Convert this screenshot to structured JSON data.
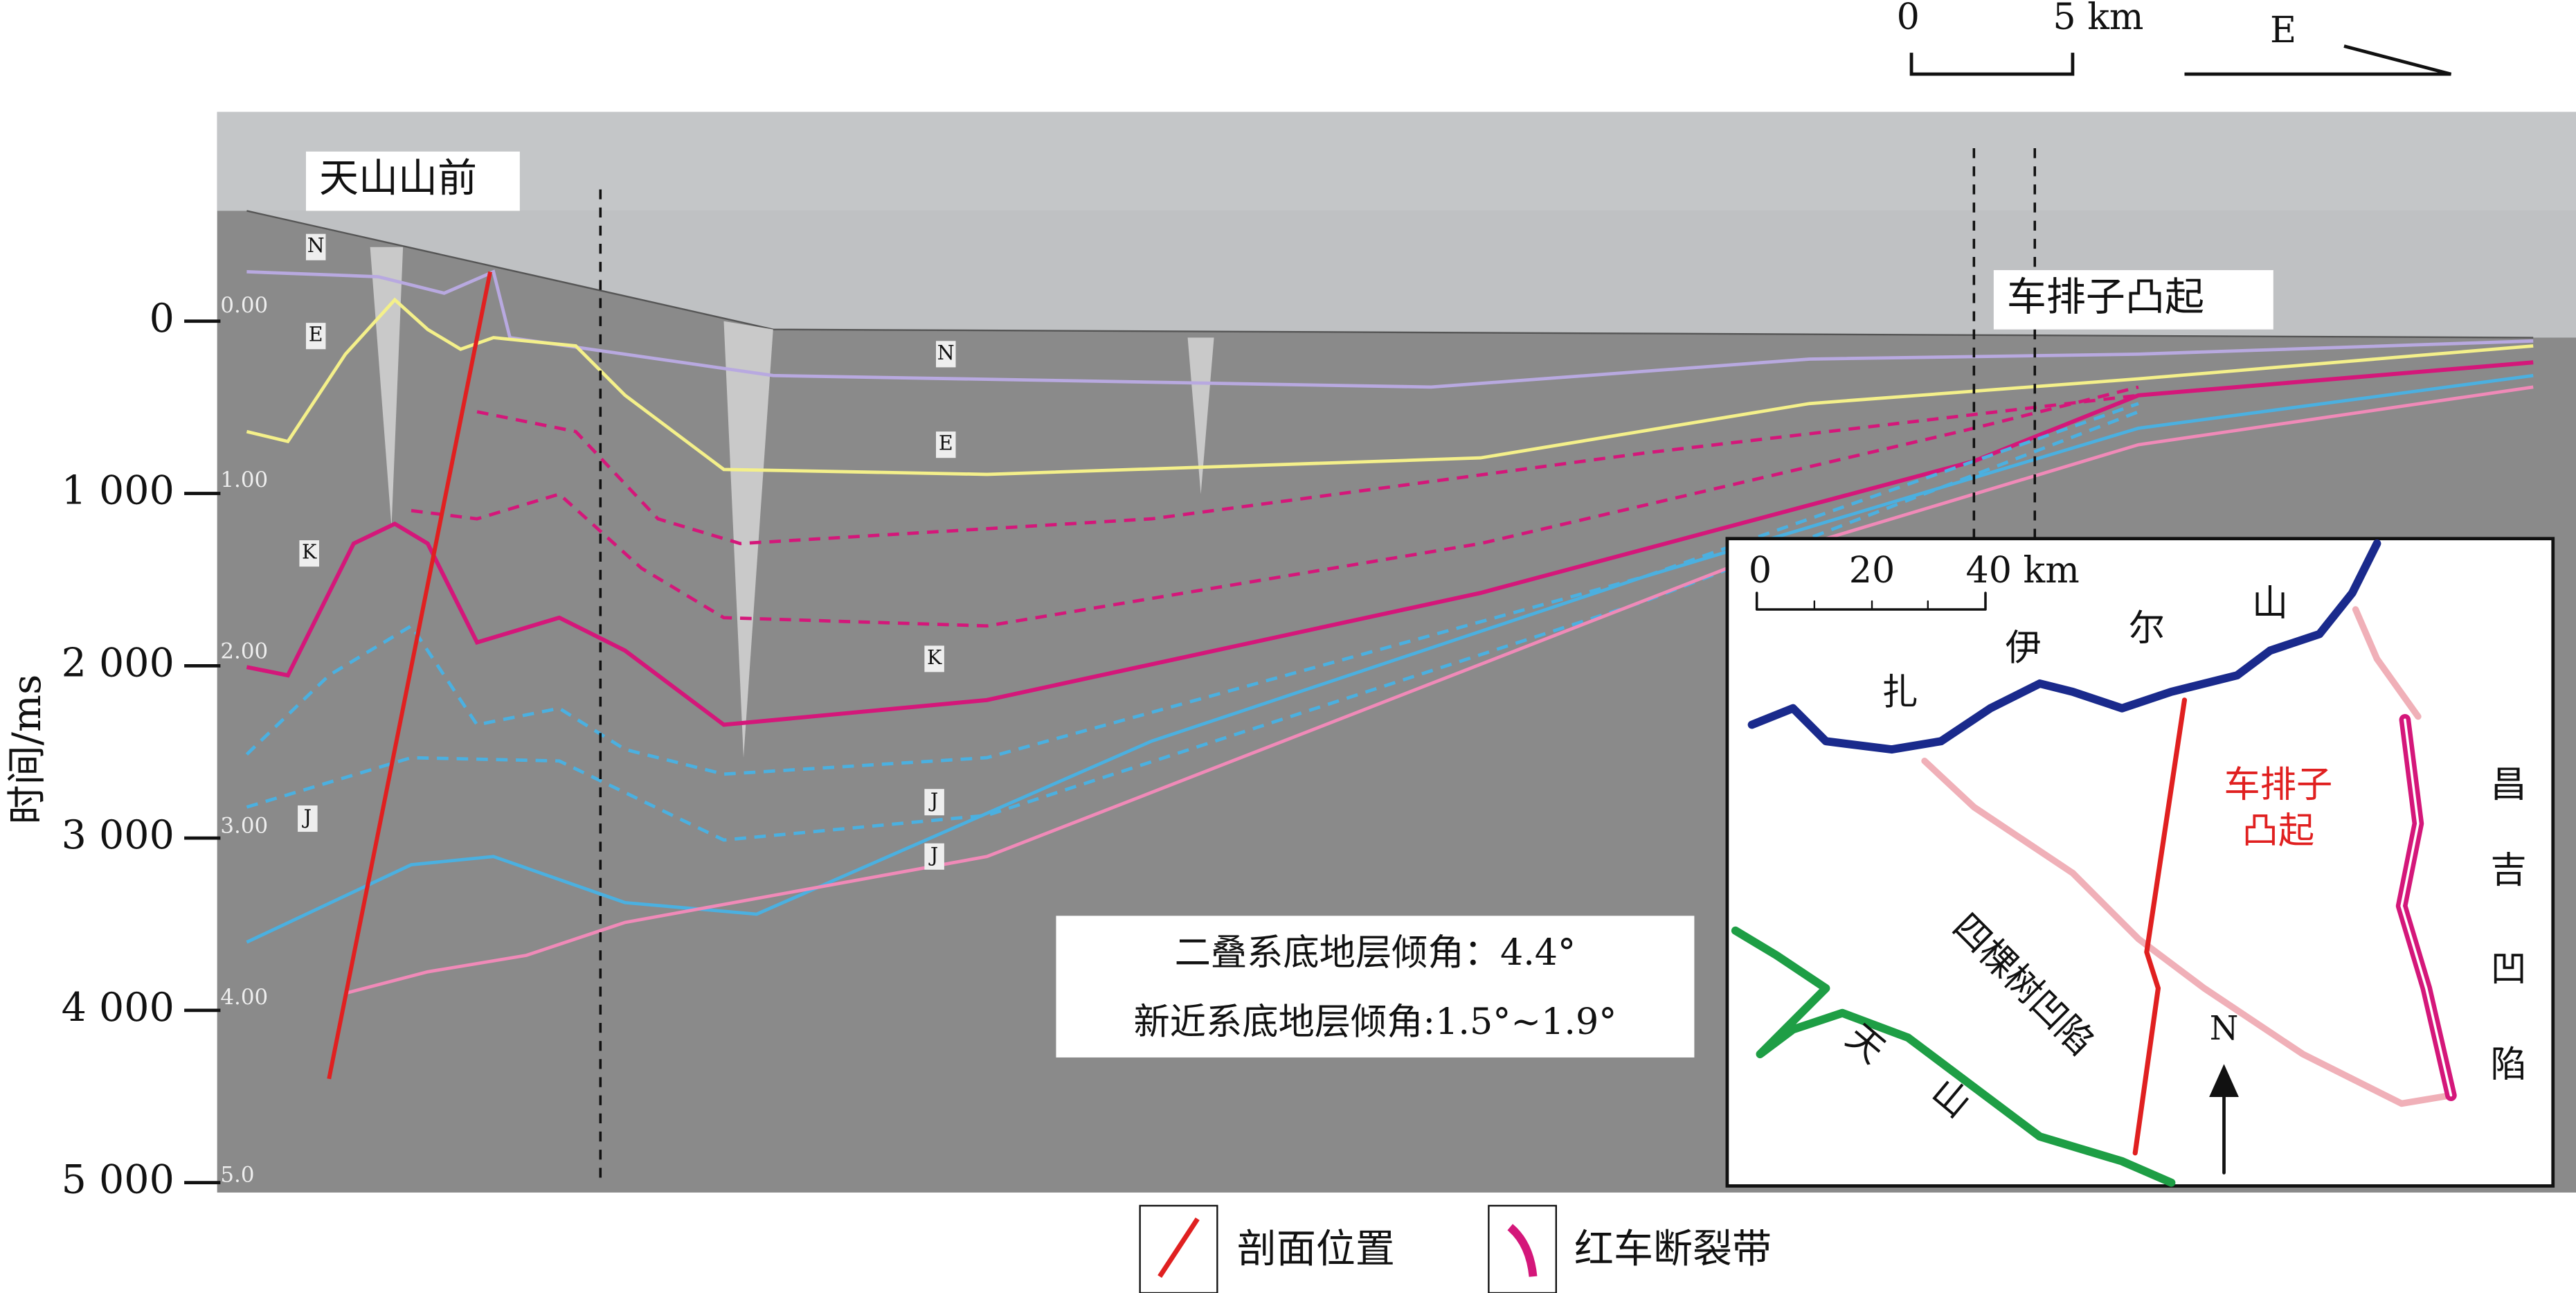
{
  "scale": {
    "zero": "0",
    "end": "5 km"
  },
  "direction": "E",
  "axis": {
    "title": "时间/ms",
    "ticks": [
      0,
      {
        "value": 1000,
        "label": "1 000"
      },
      {
        "value": 2000,
        "label": "2 000"
      },
      {
        "value": 3000,
        "label": "3 000"
      },
      {
        "value": 4000,
        "label": "4 000"
      },
      {
        "value": 5000,
        "label": "5 000"
      }
    ]
  },
  "section": {
    "labels": [
      "天山山前",
      "车排子凸起"
    ],
    "layer_tags": [
      "N",
      "E",
      "K",
      "J",
      "N",
      "E",
      "K",
      "J",
      "J"
    ],
    "time_marks": [
      "0.00",
      "1.00",
      "2.00",
      "3.00",
      "4.00",
      "5.0"
    ]
  },
  "annotation": [
    "二叠系底地层倾角：4.4°",
    "新近系底地层倾角:1.5°~1.9°"
  ],
  "inset": {
    "scale": [
      "0",
      "20",
      "40 km"
    ],
    "mountain": [
      "扎",
      "伊",
      "尔",
      "山"
    ],
    "uplift": [
      "车排子",
      "凸起"
    ],
    "depression_east": [
      "昌",
      "吉",
      "凹",
      "陷"
    ],
    "depression_west": "四棵树凹陷",
    "tianshan": [
      "天",
      "山"
    ],
    "north": "N"
  },
  "legend": [
    "剖面位置",
    "红车断裂带"
  ]
}
